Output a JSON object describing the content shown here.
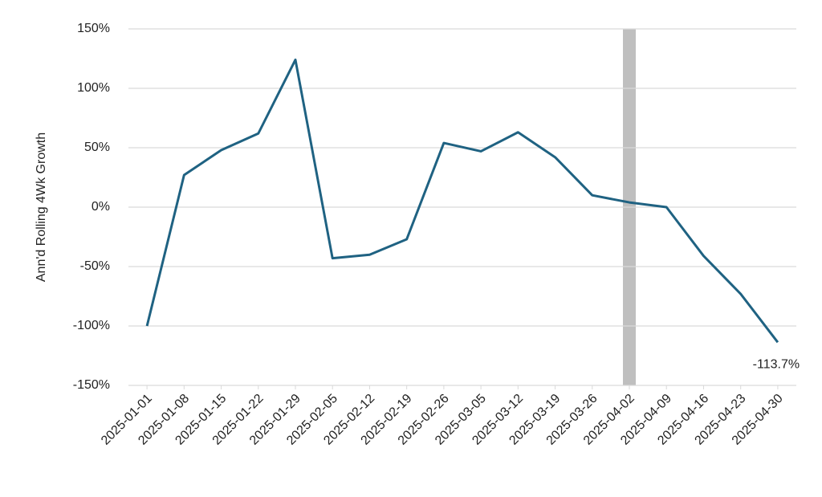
{
  "chart_data": {
    "type": "line",
    "y_label": "Ann'd Rolling 4Wk Growth",
    "x": [
      "2025-01-01",
      "2025-01-08",
      "2025-01-15",
      "2025-01-22",
      "2025-01-29",
      "2025-02-05",
      "2025-02-12",
      "2025-02-19",
      "2025-02-26",
      "2025-03-05",
      "2025-03-12",
      "2025-03-19",
      "2025-03-26",
      "2025-04-02",
      "2025-04-09",
      "2025-04-16",
      "2025-04-23",
      "2025-04-30"
    ],
    "series": [
      {
        "name": "Ann'd Rolling 4Wk Growth",
        "color": "#1f6282",
        "values": [
          -100,
          27,
          48,
          62,
          124,
          -43,
          -40,
          -27,
          54,
          47,
          63,
          42,
          10,
          4,
          0,
          -41,
          -73,
          -113.7
        ],
        "value_labels": [
          null,
          null,
          null,
          null,
          null,
          null,
          null,
          null,
          null,
          null,
          null,
          null,
          null,
          null,
          null,
          null,
          null,
          "-113.7%"
        ]
      }
    ],
    "ylim": [
      -150,
      150
    ],
    "yticks": [
      {
        "value": -150,
        "label": "-150%"
      },
      {
        "value": -100,
        "label": "-100%"
      },
      {
        "value": -50,
        "label": "-50%"
      },
      {
        "value": 0,
        "label": "0%"
      },
      {
        "value": 50,
        "label": "50%"
      },
      {
        "value": 100,
        "label": "100%"
      },
      {
        "value": 150,
        "label": "150%"
      }
    ],
    "grid": true,
    "highlight_index": 13,
    "highlight_color": "#bfbfbf"
  }
}
